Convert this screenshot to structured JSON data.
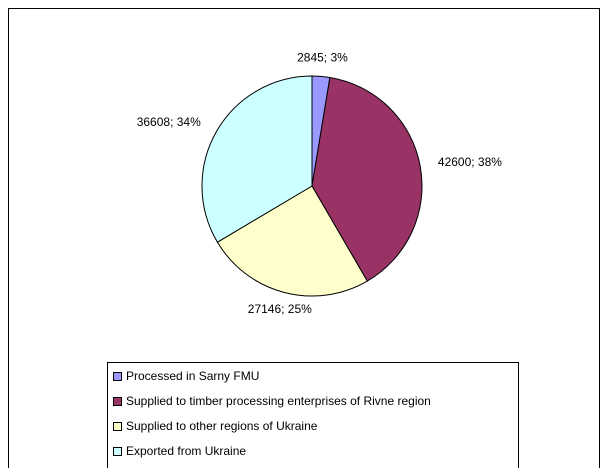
{
  "chart_data": {
    "type": "pie",
    "categories": [
      "Processed in Sarny FMU",
      "Supplied to timber processing enterprises of Rivne region",
      "Supplied to other regions of Ukraine",
      "Exported from Ukraine"
    ],
    "values": [
      2845,
      42600,
      27146,
      36608
    ],
    "value_labels": [
      "2845; 3%",
      "42600; 38%",
      "27146; 25%",
      "36608; 34%"
    ],
    "colors": [
      "#9999ff",
      "#993366",
      "#ffffcc",
      "#ccffff"
    ],
    "legend": "bottom"
  }
}
